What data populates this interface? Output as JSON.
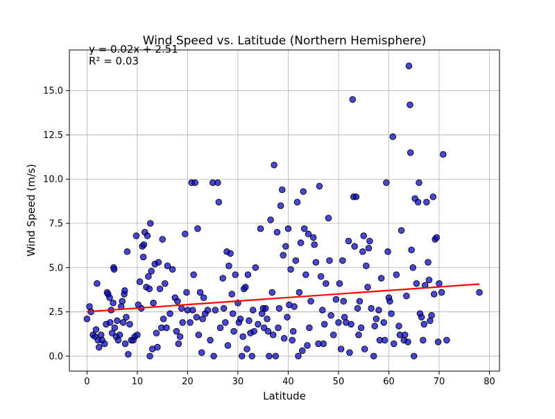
{
  "chart_data": {
    "type": "scatter",
    "title": "Wind Speed vs. Latitude (Northern Hemisphere)",
    "xlabel": "Latitude",
    "ylabel": "Wind Speed (m/s)",
    "xlim": [
      -3.5,
      82
    ],
    "ylim": [
      -0.85,
      17.3
    ],
    "xticks": [
      0,
      10,
      20,
      30,
      40,
      50,
      60,
      70,
      80
    ],
    "yticks": [
      0.0,
      2.5,
      5.0,
      7.5,
      10.0,
      12.5,
      15.0
    ],
    "xtick_labels": [
      "0",
      "10",
      "20",
      "30",
      "40",
      "50",
      "60",
      "70",
      "80"
    ],
    "ytick_labels": [
      "0.0",
      "2.5",
      "5.0",
      "7.5",
      "10.0",
      "12.5",
      "15.0"
    ],
    "grid": true,
    "point_color": "#0000cc",
    "point_edge_color": "#000000",
    "line_color": "#ff0000",
    "regression": {
      "slope": 0.02,
      "intercept": 2.51,
      "x_range": [
        0,
        78
      ],
      "equation_label": "y = 0.02x + 2.51",
      "r2_label": "R² = 0.03"
    },
    "points": [
      [
        0,
        2.1
      ],
      [
        0.5,
        2.8
      ],
      [
        0.8,
        2.5
      ],
      [
        1.2,
        1.2
      ],
      [
        1.8,
        1.5
      ],
      [
        1.6,
        1.1
      ],
      [
        2.0,
        4.1
      ],
      [
        2.2,
        0.9
      ],
      [
        2.4,
        0.5
      ],
      [
        2.8,
        1.2
      ],
      [
        3.0,
        0.9
      ],
      [
        3.5,
        0.7
      ],
      [
        3.8,
        1.8
      ],
      [
        4.0,
        3.6
      ],
      [
        4.2,
        3.5
      ],
      [
        4.5,
        3.3
      ],
      [
        4.6,
        1.9
      ],
      [
        4.8,
        2.6
      ],
      [
        5.0,
        1.3
      ],
      [
        5.2,
        3.0
      ],
      [
        5.3,
        5.0
      ],
      [
        5.4,
        4.9
      ],
      [
        5.5,
        1.6
      ],
      [
        5.8,
        1.1
      ],
      [
        6.0,
        2.0
      ],
      [
        6.2,
        0.9
      ],
      [
        6.5,
        1.2
      ],
      [
        6.8,
        2.8
      ],
      [
        7.0,
        3.1
      ],
      [
        7.2,
        1.9
      ],
      [
        7.4,
        3.5
      ],
      [
        7.5,
        3.7
      ],
      [
        7.6,
        0.7
      ],
      [
        7.8,
        2.2
      ],
      [
        8.0,
        5.9
      ],
      [
        8.2,
        0.1
      ],
      [
        8.5,
        1.8
      ],
      [
        8.8,
        0.9
      ],
      [
        9.2,
        0.9
      ],
      [
        9.5,
        1.1
      ],
      [
        9.8,
        6.8
      ],
      [
        10.0,
        1.2
      ],
      [
        10.2,
        2.9
      ],
      [
        10.5,
        4.2
      ],
      [
        10.8,
        2.7
      ],
      [
        11.0,
        6.2
      ],
      [
        11.2,
        5.6
      ],
      [
        11.3,
        6.3
      ],
      [
        11.5,
        7.0
      ],
      [
        11.8,
        3.9
      ],
      [
        12.0,
        6.8
      ],
      [
        12.2,
        4.5
      ],
      [
        12.4,
        3.8
      ],
      [
        12.5,
        0.0
      ],
      [
        12.6,
        7.5
      ],
      [
        12.8,
        4.8
      ],
      [
        13.0,
        0.4
      ],
      [
        13.2,
        3.0
      ],
      [
        13.5,
        5.2
      ],
      [
        13.8,
        1.3
      ],
      [
        14.0,
        0.5
      ],
      [
        14.2,
        5.3
      ],
      [
        14.5,
        3.8
      ],
      [
        14.8,
        1.6
      ],
      [
        15.0,
        6.6
      ],
      [
        15.2,
        2.1
      ],
      [
        15.5,
        4.1
      ],
      [
        15.8,
        1.6
      ],
      [
        16.0,
        5.1
      ],
      [
        16.5,
        2.4
      ],
      [
        17.0,
        4.9
      ],
      [
        17.5,
        3.3
      ],
      [
        17.8,
        1.4
      ],
      [
        18.0,
        3.1
      ],
      [
        18.2,
        0.7
      ],
      [
        18.5,
        1.1
      ],
      [
        18.8,
        2.7
      ],
      [
        19.0,
        1.9
      ],
      [
        19.5,
        6.9
      ],
      [
        19.8,
        3.6
      ],
      [
        20.0,
        2.6
      ],
      [
        20.5,
        1.9
      ],
      [
        20.8,
        9.8
      ],
      [
        21.0,
        2.6
      ],
      [
        21.2,
        4.6
      ],
      [
        21.5,
        9.8
      ],
      [
        21.8,
        2.2
      ],
      [
        22.0,
        7.2
      ],
      [
        22.2,
        1.2
      ],
      [
        22.5,
        3.6
      ],
      [
        22.8,
        0.2
      ],
      [
        23.0,
        2.1
      ],
      [
        23.2,
        3.3
      ],
      [
        23.5,
        2.4
      ],
      [
        24.0,
        2.6
      ],
      [
        24.5,
        0.9
      ],
      [
        25.0,
        9.8
      ],
      [
        25.2,
        0.0
      ],
      [
        25.5,
        2.6
      ],
      [
        26.0,
        9.8
      ],
      [
        26.2,
        8.7
      ],
      [
        26.5,
        1.6
      ],
      [
        27.0,
        4.4
      ],
      [
        27.2,
        2.7
      ],
      [
        27.5,
        1.9
      ],
      [
        27.8,
        5.9
      ],
      [
        28.0,
        0.6
      ],
      [
        28.2,
        5.1
      ],
      [
        28.5,
        5.8
      ],
      [
        28.8,
        3.5
      ],
      [
        29.0,
        2.4
      ],
      [
        29.2,
        1.4
      ],
      [
        29.5,
        4.6
      ],
      [
        30.0,
        3.0
      ],
      [
        30.2,
        1.9
      ],
      [
        30.5,
        2.1
      ],
      [
        30.8,
        0.0
      ],
      [
        31.0,
        1.1
      ],
      [
        31.2,
        3.8
      ],
      [
        31.5,
        3.9
      ],
      [
        31.8,
        0.4
      ],
      [
        32.0,
        4.6
      ],
      [
        32.2,
        2.0
      ],
      [
        32.5,
        1.3
      ],
      [
        32.8,
        0.0
      ],
      [
        33.0,
        2.6
      ],
      [
        33.2,
        1.4
      ],
      [
        33.5,
        5.0
      ],
      [
        34.0,
        1.8
      ],
      [
        34.5,
        7.2
      ],
      [
        34.8,
        2.4
      ],
      [
        35.0,
        2.7
      ],
      [
        35.2,
        1.6
      ],
      [
        35.5,
        2.7
      ],
      [
        35.8,
        2.1
      ],
      [
        36.0,
        1.4
      ],
      [
        36.2,
        0.0
      ],
      [
        36.5,
        7.7
      ],
      [
        36.8,
        3.6
      ],
      [
        37.0,
        1.2
      ],
      [
        37.2,
        10.8
      ],
      [
        37.5,
        0.0
      ],
      [
        37.8,
        7.0
      ],
      [
        38.0,
        1.6
      ],
      [
        38.2,
        2.7
      ],
      [
        38.5,
        8.5
      ],
      [
        38.8,
        9.4
      ],
      [
        39.0,
        5.7
      ],
      [
        39.2,
        1.0
      ],
      [
        39.5,
        6.2
      ],
      [
        39.8,
        2.2
      ],
      [
        40.0,
        7.2
      ],
      [
        40.2,
        2.9
      ],
      [
        40.5,
        4.9
      ],
      [
        40.8,
        0.9
      ],
      [
        41.0,
        1.4
      ],
      [
        41.2,
        2.8
      ],
      [
        41.5,
        5.4
      ],
      [
        41.8,
        8.7
      ],
      [
        42.0,
        0.0
      ],
      [
        42.2,
        3.6
      ],
      [
        42.5,
        6.4
      ],
      [
        42.8,
        0.3
      ],
      [
        43.0,
        9.3
      ],
      [
        43.2,
        7.2
      ],
      [
        43.5,
        4.6
      ],
      [
        43.8,
        0.6
      ],
      [
        44.0,
        6.9
      ],
      [
        44.2,
        1.6
      ],
      [
        44.5,
        3.1
      ],
      [
        45.0,
        6.7
      ],
      [
        45.2,
        6.3
      ],
      [
        45.5,
        5.3
      ],
      [
        46.0,
        0.7
      ],
      [
        46.2,
        9.6
      ],
      [
        46.5,
        4.5
      ],
      [
        46.8,
        2.6
      ],
      [
        47.0,
        0.7
      ],
      [
        47.2,
        1.8
      ],
      [
        47.5,
        4.1
      ],
      [
        48.0,
        7.8
      ],
      [
        48.2,
        5.4
      ],
      [
        48.5,
        2.3
      ],
      [
        49.0,
        1.2
      ],
      [
        49.5,
        3.2
      ],
      [
        50.0,
        1.9
      ],
      [
        50.2,
        4.1
      ],
      [
        50.5,
        0.4
      ],
      [
        50.8,
        5.4
      ],
      [
        51.0,
        3.1
      ],
      [
        51.2,
        2.2
      ],
      [
        51.5,
        1.9
      ],
      [
        52.0,
        6.5
      ],
      [
        52.2,
        0.2
      ],
      [
        52.5,
        1.8
      ],
      [
        52.8,
        14.5
      ],
      [
        53.0,
        9.0
      ],
      [
        53.2,
        6.2
      ],
      [
        53.5,
        9.0
      ],
      [
        53.8,
        2.7
      ],
      [
        54.0,
        1.2
      ],
      [
        54.2,
        3.1
      ],
      [
        54.5,
        1.6
      ],
      [
        54.8,
        5.9
      ],
      [
        55.0,
        6.8
      ],
      [
        55.2,
        0.4
      ],
      [
        55.5,
        5.1
      ],
      [
        55.8,
        3.9
      ],
      [
        56.0,
        6.1
      ],
      [
        56.2,
        6.5
      ],
      [
        56.5,
        2.7
      ],
      [
        57.0,
        0.0
      ],
      [
        57.2,
        1.7
      ],
      [
        57.5,
        2.1
      ],
      [
        58.0,
        2.6
      ],
      [
        58.2,
        0.9
      ],
      [
        58.5,
        4.4
      ],
      [
        59.0,
        1.9
      ],
      [
        59.2,
        0.9
      ],
      [
        59.5,
        9.8
      ],
      [
        59.8,
        5.9
      ],
      [
        60.0,
        3.3
      ],
      [
        60.2,
        3.1
      ],
      [
        60.5,
        2.4
      ],
      [
        60.8,
        12.4
      ],
      [
        61.0,
        0.7
      ],
      [
        61.5,
        4.6
      ],
      [
        62.0,
        1.7
      ],
      [
        62.2,
        1.2
      ],
      [
        62.5,
        7.1
      ],
      [
        63.0,
        0.9
      ],
      [
        63.2,
        1.2
      ],
      [
        63.5,
        3.4
      ],
      [
        63.8,
        0.8
      ],
      [
        64.0,
        16.4
      ],
      [
        64.2,
        14.2
      ],
      [
        64.3,
        11.5
      ],
      [
        64.5,
        6.0
      ],
      [
        64.8,
        5.0
      ],
      [
        65.0,
        0.0
      ],
      [
        65.2,
        8.9
      ],
      [
        65.5,
        4.1
      ],
      [
        65.8,
        8.7
      ],
      [
        66.0,
        9.8
      ],
      [
        66.2,
        2.4
      ],
      [
        66.5,
        2.2
      ],
      [
        66.8,
        0.9
      ],
      [
        67.0,
        1.8
      ],
      [
        67.2,
        4.0
      ],
      [
        67.5,
        8.7
      ],
      [
        67.8,
        5.3
      ],
      [
        68.0,
        4.3
      ],
      [
        68.2,
        2.0
      ],
      [
        68.5,
        2.3
      ],
      [
        68.8,
        9.0
      ],
      [
        69.0,
        3.5
      ],
      [
        69.2,
        6.6
      ],
      [
        69.5,
        6.7
      ],
      [
        69.8,
        0.8
      ],
      [
        70.0,
        4.1
      ],
      [
        70.5,
        3.6
      ],
      [
        70.8,
        11.4
      ],
      [
        71.5,
        0.9
      ],
      [
        78.0,
        3.6
      ]
    ]
  }
}
